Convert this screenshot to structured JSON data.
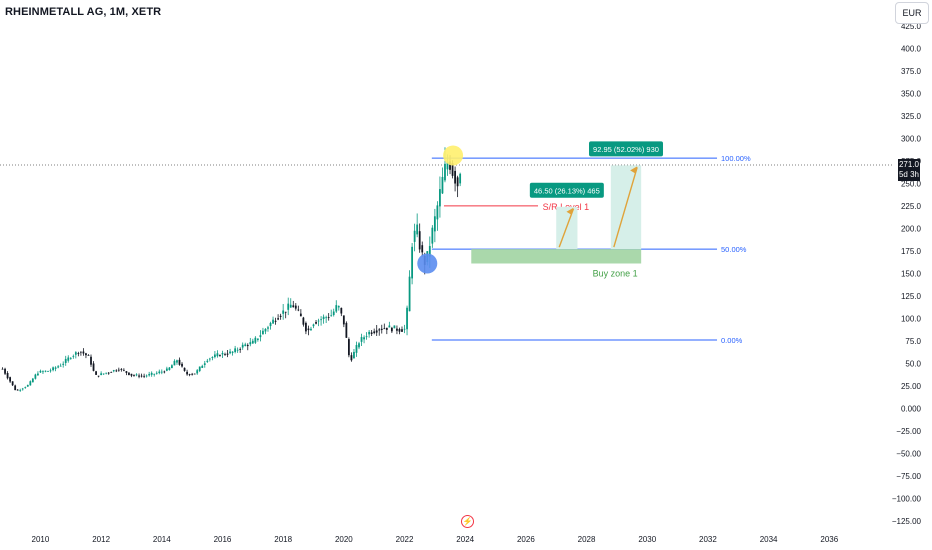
{
  "header": {
    "title": "RHEINMETALL AG, 1M, XETR",
    "currency": "EUR"
  },
  "price_tag": {
    "price": "271.0",
    "countdown": "5d 3h"
  },
  "chart_data": {
    "type": "candlestick",
    "symbol": "RHEINMETALL AG",
    "interval": "1M",
    "exchange": "XETR",
    "currency": "EUR",
    "grid": false,
    "yticks": [
      "425.0",
      "400.0",
      "375.0",
      "350.0",
      "325.0",
      "300.0",
      "275.0",
      "250.0",
      "225.0",
      "200.0",
      "175.0",
      "150.0",
      "125.0",
      "100.0",
      "75.0",
      "50.0",
      "25.00",
      "0.000",
      "−25.00",
      "−50.00",
      "−75.00",
      "−100.00",
      "−125.00"
    ],
    "ytick_values": [
      425,
      400,
      375,
      350,
      325,
      300,
      275,
      250,
      225,
      200,
      175,
      150,
      125,
      100,
      75,
      50,
      25,
      0,
      -25,
      -50,
      -75,
      -100,
      -125
    ],
    "xticks": [
      "2010",
      "2012",
      "2014",
      "2016",
      "2018",
      "2020",
      "2022",
      "2024",
      "2026",
      "2028",
      "2030",
      "2032",
      "2034",
      "2036"
    ],
    "xtick_values": [
      2010,
      2012,
      2014,
      2016,
      2018,
      2020,
      2022,
      2024,
      2026,
      2028,
      2030,
      2032,
      2034,
      2036
    ],
    "xlim": [
      2008.7,
      2038.1
    ],
    "ylim": [
      -125,
      437
    ],
    "last_price": 271.0,
    "price_path": [
      [
        2008.75,
        44
      ],
      [
        2009.2,
        19
      ],
      [
        2009.6,
        26
      ],
      [
        2009.9,
        40
      ],
      [
        2010.3,
        42
      ],
      [
        2010.7,
        49
      ],
      [
        2011.0,
        58
      ],
      [
        2011.3,
        64
      ],
      [
        2011.6,
        57
      ],
      [
        2011.8,
        36
      ],
      [
        2012.2,
        40
      ],
      [
        2012.6,
        44
      ],
      [
        2013.0,
        37
      ],
      [
        2013.4,
        36
      ],
      [
        2013.8,
        39
      ],
      [
        2014.2,
        43
      ],
      [
        2014.5,
        54
      ],
      [
        2014.8,
        38
      ],
      [
        2015.1,
        39
      ],
      [
        2015.5,
        55
      ],
      [
        2015.9,
        60
      ],
      [
        2016.3,
        62
      ],
      [
        2016.7,
        70
      ],
      [
        2017.0,
        73
      ],
      [
        2017.4,
        88
      ],
      [
        2017.8,
        102
      ],
      [
        2018.1,
        110
      ],
      [
        2018.3,
        116
      ],
      [
        2018.6,
        100
      ],
      [
        2018.8,
        85
      ],
      [
        2019.0,
        96
      ],
      [
        2019.3,
        100
      ],
      [
        2019.6,
        104
      ],
      [
        2019.8,
        115
      ],
      [
        2020.0,
        95
      ],
      [
        2020.2,
        52
      ],
      [
        2020.5,
        74
      ],
      [
        2020.8,
        84
      ],
      [
        2021.1,
        88
      ],
      [
        2021.4,
        90
      ],
      [
        2021.8,
        88
      ],
      [
        2022.0,
        88
      ],
      [
        2022.1,
        112
      ],
      [
        2022.25,
        185
      ],
      [
        2022.4,
        200
      ],
      [
        2022.55,
        172
      ],
      [
        2022.7,
        160
      ],
      [
        2022.85,
        186
      ],
      [
        2023.0,
        210
      ],
      [
        2023.15,
        236
      ],
      [
        2023.3,
        262
      ],
      [
        2023.45,
        278
      ],
      [
        2023.6,
        262
      ],
      [
        2023.75,
        250
      ],
      [
        2023.85,
        271
      ]
    ],
    "fib_levels": [
      {
        "label": "100.00%",
        "value": 278
      },
      {
        "label": "50.00%",
        "value": 177
      },
      {
        "label": "0.00%",
        "value": 76
      }
    ],
    "sr_level": {
      "label": "S/R Level 1",
      "value": 225
    },
    "buy_zone": {
      "label": "Buy zone 1",
      "from": 161,
      "to": 177
    },
    "projections": [
      {
        "label": "46.50 (26.13%) 465",
        "from": 177,
        "to": 224
      },
      {
        "label": "92.95 (52.02%) 930",
        "from": 177,
        "to": 270
      }
    ],
    "markers": [
      {
        "name": "top-marker",
        "value": 281,
        "color": "#fff06e"
      },
      {
        "name": "bottom-marker",
        "value": 161,
        "color": "#5b8def"
      }
    ],
    "colors": {
      "up": "#089981",
      "down": "#131722",
      "fib_line": "#2962ff",
      "sr_line": "#f23645",
      "buy_zone": "#a5d6a7",
      "buy_zone_text": "#43a047",
      "projection_label": "#089981",
      "projection_fill": "#d6efe9",
      "arrow": "#e0a33a"
    }
  }
}
